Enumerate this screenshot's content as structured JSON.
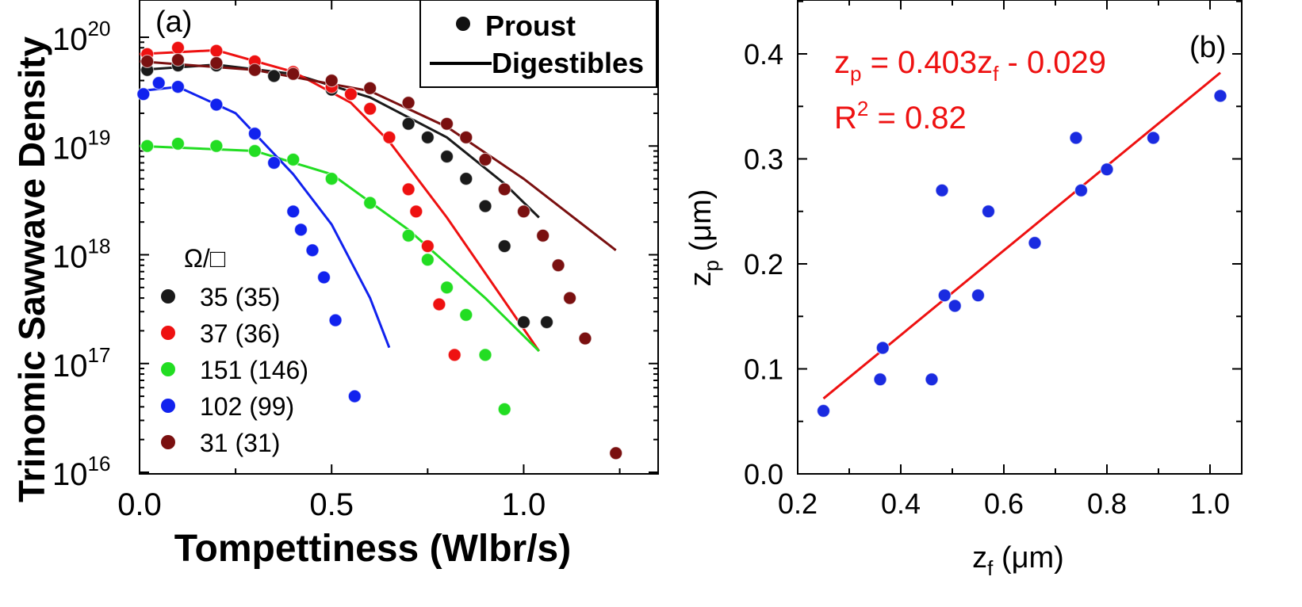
{
  "chart_data": [
    {
      "type": "scatter",
      "panel_label": "(a)",
      "xlabel": "Tompettiness (Wlbr/s)",
      "ylabel": "Trinomic Sawwave Density",
      "y_scale": "log",
      "xlim": [
        0.0,
        1.35
      ],
      "ylim": [
        1e+16,
        1.2e+20
      ],
      "x_ticks": [
        "0.0",
        "0.5",
        "1.0"
      ],
      "y_ticks": [
        {
          "base": "10",
          "exp": "16"
        },
        {
          "base": "10",
          "exp": "17"
        },
        {
          "base": "10",
          "exp": "18"
        },
        {
          "base": "10",
          "exp": "19"
        },
        {
          "base": "10",
          "exp": "20"
        }
      ],
      "legend_style": [
        {
          "label": "Proust",
          "marker": "dot"
        },
        {
          "label": "Digestibles",
          "marker": "line"
        }
      ],
      "series_legend_title": "Ω/□",
      "series": [
        {
          "name": "35  (35)",
          "color": "#1a1a1a",
          "x": [
            0.02,
            0.1,
            0.2,
            0.3,
            0.35,
            0.5,
            0.6,
            0.7,
            0.75,
            0.8,
            0.85,
            0.9,
            0.95,
            1.0,
            1.06
          ],
          "y": [
            5e+19,
            5.5e+19,
            5.5e+19,
            5.2e+19,
            4.4e+19,
            3.3e+19,
            2.2e+19,
            1.6e+19,
            1.2e+19,
            8e+18,
            5e+18,
            2.8e+18,
            1.2e+18,
            2.4e+17,
            2.4e+17
          ],
          "fit_x": [
            0.0,
            0.2,
            0.4,
            0.6,
            0.8,
            0.95,
            1.04
          ],
          "fit_y": [
            5e+19,
            5.6e+19,
            4.6e+19,
            2.8e+19,
            1.2e+19,
            4.5e+18,
            2.2e+18
          ]
        },
        {
          "name": "37  (36)",
          "color": "#ee1111",
          "x": [
            0.02,
            0.1,
            0.2,
            0.3,
            0.4,
            0.5,
            0.55,
            0.6,
            0.65,
            0.7,
            0.72,
            0.75,
            0.78,
            0.82
          ],
          "y": [
            7e+19,
            8e+19,
            7.5e+19,
            6e+19,
            4.8e+19,
            3.5e+19,
            3e+19,
            2.2e+19,
            1.2e+19,
            4e+18,
            2.5e+18,
            1.2e+18,
            3.5e+17,
            1.2e+17
          ],
          "fit_x": [
            0.0,
            0.2,
            0.4,
            0.55,
            0.65,
            0.8,
            1.04
          ],
          "fit_y": [
            7e+19,
            7.6e+19,
            4.8e+19,
            2.5e+19,
            1.1e+19,
            2.2e+18,
            1.3e+17
          ]
        },
        {
          "name": "151 (146)",
          "color": "#22dd22",
          "x": [
            0.02,
            0.1,
            0.2,
            0.3,
            0.4,
            0.5,
            0.6,
            0.7,
            0.75,
            0.8,
            0.85,
            0.9,
            0.95
          ],
          "y": [
            1e+19,
            1.05e+19,
            1e+19,
            9e+18,
            7.5e+18,
            5e+18,
            3e+18,
            1.5e+18,
            9e+17,
            5e+17,
            2.8e+17,
            1.2e+17,
            3.8e+16
          ],
          "fit_x": [
            0.0,
            0.3,
            0.5,
            0.7,
            0.9,
            1.04
          ],
          "fit_y": [
            1e+19,
            9e+18,
            5.5e+18,
            1.7e+18,
            4e+17,
            1.3e+17
          ]
        },
        {
          "name": "102 (99)",
          "color": "#1122ee",
          "x": [
            0.01,
            0.05,
            0.1,
            0.2,
            0.3,
            0.35,
            0.4,
            0.42,
            0.45,
            0.48,
            0.51,
            0.56
          ],
          "y": [
            3e+19,
            3.8e+19,
            3.5e+19,
            2.4e+19,
            1.3e+19,
            7e+18,
            2.5e+18,
            1.7e+18,
            1.1e+18,
            6.2e+17,
            2.5e+17,
            5e+16
          ],
          "fit_x": [
            0.0,
            0.1,
            0.25,
            0.4,
            0.5,
            0.6,
            0.65
          ],
          "fit_y": [
            3.2e+19,
            3.5e+19,
            2e+19,
            5.5e+18,
            1.9e+18,
            4e+17,
            1.4e+17
          ]
        },
        {
          "name": "31 (31)",
          "color": "#7a1010",
          "x": [
            0.02,
            0.1,
            0.2,
            0.3,
            0.4,
            0.5,
            0.6,
            0.7,
            0.8,
            0.85,
            0.9,
            0.95,
            1.0,
            1.05,
            1.09,
            1.12,
            1.16,
            1.24
          ],
          "y": [
            6e+19,
            6.2e+19,
            5.8e+19,
            5e+19,
            4.6e+19,
            4e+19,
            3.4e+19,
            2.5e+19,
            1.6e+19,
            1.2e+19,
            7.5e+18,
            4e+18,
            2.5e+18,
            1.5e+18,
            8e+17,
            4e+17,
            1.7e+17,
            1.5e+16
          ],
          "fit_x": [
            0.0,
            0.3,
            0.6,
            0.8,
            1.0,
            1.24
          ],
          "fit_y": [
            6e+19,
            5e+19,
            3.2e+19,
            1.5e+19,
            5e+18,
            1.1e+18
          ]
        }
      ]
    },
    {
      "type": "scatter",
      "panel_label": "(b)",
      "xlabel": {
        "base": "z",
        "sub": "f",
        "rest": " (μm)"
      },
      "ylabel": {
        "base": "z",
        "sub": "p",
        "rest": " (μm)"
      },
      "xlim": [
        0.2,
        1.08
      ],
      "ylim": [
        0.0,
        0.45
      ],
      "x_ticks": [
        "0.2",
        "0.4",
        "0.6",
        "0.8",
        "1.0"
      ],
      "y_ticks": [
        "0.0",
        "0.1",
        "0.2",
        "0.3",
        "0.4"
      ],
      "points": {
        "color": "#1a2be0",
        "x": [
          0.25,
          0.36,
          0.365,
          0.46,
          0.48,
          0.485,
          0.505,
          0.55,
          0.57,
          0.66,
          0.74,
          0.75,
          0.8,
          0.89,
          1.02
        ],
        "y": [
          0.06,
          0.09,
          0.12,
          0.09,
          0.27,
          0.17,
          0.16,
          0.17,
          0.25,
          0.22,
          0.32,
          0.27,
          0.29,
          0.32,
          0.36
        ]
      },
      "fit": {
        "slope": 0.403,
        "intercept": -0.029,
        "x_range": [
          0.25,
          1.02
        ],
        "color": "#ee1111"
      },
      "annotations": {
        "equation": {
          "lhs": "z",
          "lhs_sub": "p",
          "mid": " = 0.403z",
          "mid_sub": "f",
          "rhs": " - 0.029"
        },
        "r2": {
          "base": "R",
          "sup": "2",
          "rest": " = 0.82"
        }
      }
    }
  ]
}
